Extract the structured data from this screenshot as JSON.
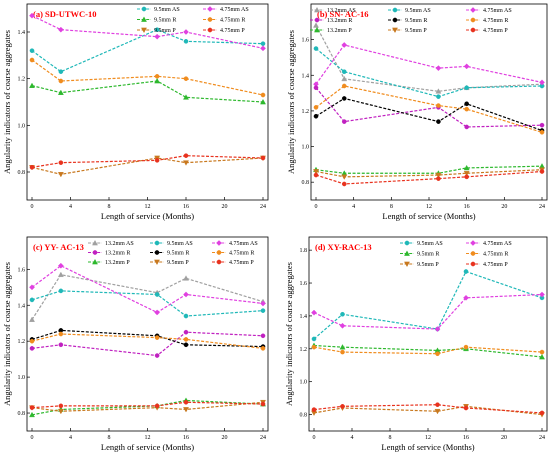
{
  "chart_data": [
    {
      "type": "line",
      "title": "(a) SD-UTWC-10",
      "xlabel": "Length of service (Months)",
      "ylabel": "Angularity indicators of coarse aggregates",
      "x": [
        0,
        3,
        13,
        16,
        24
      ],
      "xticks": [
        0,
        4,
        8,
        12,
        16,
        20,
        24
      ],
      "yticks": [
        0.8,
        1.0,
        1.2,
        1.4
      ],
      "ylim": [
        0.68,
        1.52
      ],
      "legend_position": "top-right",
      "series": [
        {
          "name": "9.5mm AS",
          "color": "#1fb8b8",
          "marker": "circle",
          "values": [
            1.32,
            1.23,
            1.41,
            1.36,
            1.35
          ]
        },
        {
          "name": "4.75mm AS",
          "color": "#e040e0",
          "marker": "diamond",
          "values": [
            1.47,
            1.41,
            1.38,
            1.4,
            1.33
          ]
        },
        {
          "name": "9.5mm R",
          "color": "#2db82d",
          "marker": "triangle",
          "values": [
            1.17,
            1.14,
            1.19,
            1.12,
            1.1
          ]
        },
        {
          "name": "4.75mm R",
          "color": "#f08c1e",
          "marker": "circle",
          "values": [
            1.28,
            1.19,
            1.21,
            1.2,
            1.13
          ]
        },
        {
          "name": "9.5mm P",
          "color": "#c8781e",
          "marker": "triangle-down",
          "values": [
            0.82,
            0.79,
            0.86,
            0.84,
            0.86
          ]
        },
        {
          "name": "4.75mm P",
          "color": "#e8321e",
          "marker": "circle",
          "values": [
            0.82,
            0.84,
            0.85,
            0.87,
            0.86
          ]
        }
      ]
    },
    {
      "type": "line",
      "title": "(b) SN- AC-16",
      "xlabel": "Length of service (Months)",
      "ylabel": "Angularity indicators of coarse aggregates",
      "x": [
        0,
        3,
        13,
        16,
        24
      ],
      "xticks": [
        0,
        4,
        8,
        12,
        16,
        20,
        24
      ],
      "yticks": [
        0.8,
        1.0,
        1.2,
        1.4,
        1.6
      ],
      "ylim": [
        0.7,
        1.8
      ],
      "legend_position": "top",
      "series": [
        {
          "name": "13.2mm AS",
          "color": "#a0a0a0",
          "marker": "triangle",
          "values": [
            1.68,
            1.38,
            1.31,
            1.33,
            1.35
          ]
        },
        {
          "name": "9.5mm AS",
          "color": "#1fb8b8",
          "marker": "circle",
          "values": [
            1.55,
            1.42,
            1.28,
            1.33,
            1.34
          ]
        },
        {
          "name": "4.75mm AS",
          "color": "#e040e0",
          "marker": "diamond",
          "values": [
            1.35,
            1.57,
            1.44,
            1.45,
            1.36
          ]
        },
        {
          "name": "13.2mm R",
          "color": "#c020c0",
          "marker": "circle",
          "values": [
            1.33,
            1.14,
            1.22,
            1.11,
            1.12
          ]
        },
        {
          "name": "9.5mm R",
          "color": "#000000",
          "marker": "circle",
          "values": [
            1.17,
            1.27,
            1.14,
            1.24,
            1.09
          ]
        },
        {
          "name": "4.75mm R",
          "color": "#f08c1e",
          "marker": "circle",
          "values": [
            1.22,
            1.34,
            1.23,
            1.21,
            1.08
          ]
        },
        {
          "name": "13.2mm P",
          "color": "#2db82d",
          "marker": "triangle",
          "values": [
            0.87,
            0.85,
            0.85,
            0.88,
            0.89
          ]
        },
        {
          "name": "9.5mm P",
          "color": "#c8781e",
          "marker": "triangle-down",
          "values": [
            0.86,
            0.83,
            0.84,
            0.85,
            0.87
          ]
        },
        {
          "name": "4.75mm P",
          "color": "#e8321e",
          "marker": "circle",
          "values": [
            0.84,
            0.79,
            0.82,
            0.83,
            0.86
          ]
        }
      ]
    },
    {
      "type": "line",
      "title": "(c) YY- AC-13",
      "xlabel": "Length of service (Months)",
      "ylabel": "Angularity indicators of coarse aggregates",
      "x": [
        0,
        3,
        13,
        16,
        24
      ],
      "xticks": [
        0,
        4,
        8,
        12,
        16,
        20,
        24
      ],
      "yticks": [
        0.8,
        1.0,
        1.2,
        1.4,
        1.6
      ],
      "ylim": [
        0.7,
        1.78
      ],
      "legend_position": "top",
      "series": [
        {
          "name": "13.2mm AS",
          "color": "#a0a0a0",
          "marker": "triangle",
          "values": [
            1.32,
            1.57,
            1.47,
            1.55,
            1.42
          ]
        },
        {
          "name": "9.5mm AS",
          "color": "#1fb8b8",
          "marker": "circle",
          "values": [
            1.43,
            1.48,
            1.46,
            1.34,
            1.37
          ]
        },
        {
          "name": "4.75mm AS",
          "color": "#e040e0",
          "marker": "diamond",
          "values": [
            1.5,
            1.62,
            1.36,
            1.46,
            1.41
          ]
        },
        {
          "name": "13.2mm R",
          "color": "#c020c0",
          "marker": "circle",
          "values": [
            1.16,
            1.18,
            1.12,
            1.25,
            1.23
          ]
        },
        {
          "name": "9.5mm R",
          "color": "#000000",
          "marker": "circle",
          "values": [
            1.21,
            1.26,
            1.23,
            1.18,
            1.17
          ]
        },
        {
          "name": "4.75mm R",
          "color": "#f08c1e",
          "marker": "circle",
          "values": [
            1.2,
            1.24,
            1.22,
            1.21,
            1.16
          ]
        },
        {
          "name": "13.2mm P",
          "color": "#2db82d",
          "marker": "triangle",
          "values": [
            0.79,
            0.82,
            0.84,
            0.87,
            0.85
          ]
        },
        {
          "name": "9.5mm P",
          "color": "#c8781e",
          "marker": "triangle-down",
          "values": [
            0.83,
            0.81,
            0.83,
            0.82,
            0.86
          ]
        },
        {
          "name": "4.75mm P",
          "color": "#e8321e",
          "marker": "circle",
          "values": [
            0.83,
            0.84,
            0.84,
            0.86,
            0.85
          ]
        }
      ]
    },
    {
      "type": "line",
      "title": "(d) XY-RAC-13",
      "xlabel": "Length of service (Months)",
      "ylabel": "Angularity indicators of coarse aggregates",
      "x": [
        0,
        3,
        13,
        16,
        24
      ],
      "xticks": [
        0,
        4,
        8,
        12,
        16,
        20,
        24
      ],
      "yticks": [
        0.8,
        1.0,
        1.2,
        1.4,
        1.6,
        1.8
      ],
      "ylim": [
        0.7,
        1.88
      ],
      "legend_position": "top",
      "series": [
        {
          "name": "9.5mm AS",
          "color": "#1fb8b8",
          "marker": "circle",
          "values": [
            1.26,
            1.41,
            1.32,
            1.67,
            1.51
          ]
        },
        {
          "name": "4.75mm AS",
          "color": "#e040e0",
          "marker": "diamond",
          "values": [
            1.42,
            1.34,
            1.32,
            1.51,
            1.53
          ]
        },
        {
          "name": "9.5mm R",
          "color": "#2db82d",
          "marker": "triangle",
          "values": [
            1.22,
            1.21,
            1.19,
            1.2,
            1.15
          ]
        },
        {
          "name": "4.75mm R",
          "color": "#f08c1e",
          "marker": "circle",
          "values": [
            1.21,
            1.18,
            1.17,
            1.21,
            1.18
          ]
        },
        {
          "name": "9.5mm P",
          "color": "#c8781e",
          "marker": "triangle-down",
          "values": [
            0.81,
            0.84,
            0.82,
            0.85,
            0.8
          ]
        },
        {
          "name": "4.75mm P",
          "color": "#e8321e",
          "marker": "circle",
          "values": [
            0.83,
            0.85,
            0.86,
            0.84,
            0.81
          ]
        }
      ]
    }
  ]
}
